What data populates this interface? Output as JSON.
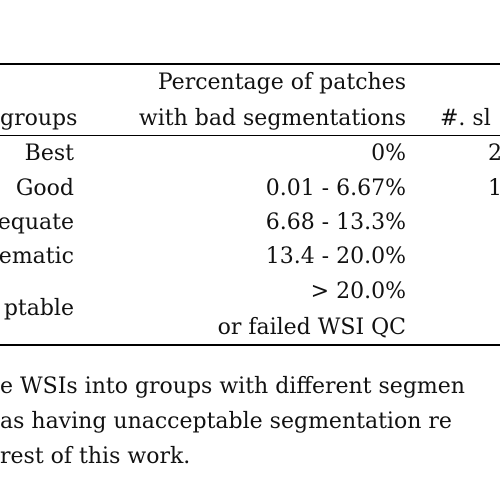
{
  "table": {
    "header": {
      "col1": "groups",
      "col2_line1": "Percentage of patches",
      "col2_line2": "with bad segmentations",
      "col3": "#. sl"
    },
    "rows": [
      {
        "group": "Best",
        "percentage": "0%",
        "count": "2"
      },
      {
        "group": "Good",
        "percentage": "0.01 - 6.67%",
        "count": "1"
      },
      {
        "group": "equate",
        "percentage": "6.68 - 13.3%",
        "count": ""
      },
      {
        "group": "ematic",
        "percentage": "13.4 - 20.0%",
        "count": ""
      },
      {
        "group": "ptable",
        "percentage_line1": "> 20.0%",
        "percentage_line2": "or failed WSI QC",
        "count": ""
      }
    ]
  },
  "caption": {
    "line1": "e WSIs into groups with different segmen",
    "line2": "as having unacceptable segmentation re",
    "line3": "rest of this work."
  }
}
